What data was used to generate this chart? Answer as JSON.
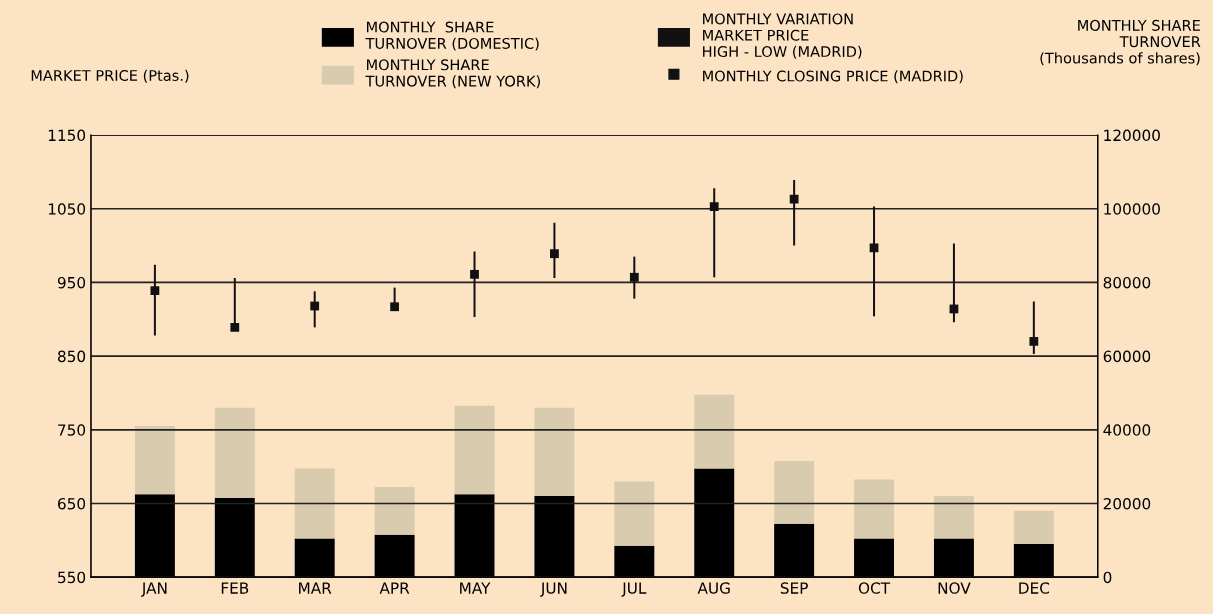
{
  "chart_data": {
    "type": "bar",
    "ylabel": "MARKET PRICE (Ptas.)",
    "y2label": "MONTHLY SHARE\nTURNOVER\n(Thousands of shares)",
    "categories": [
      "JAN",
      "FEB",
      "MAR",
      "APR",
      "MAY",
      "JUN",
      "JUL",
      "AUG",
      "SEP",
      "OCT",
      "NOV",
      "DEC"
    ],
    "stacked": true,
    "series": [
      {
        "name": "MONTHLY  SHARE\nTURNOVER (DOMESTIC)",
        "axis": "y2",
        "color": "#000000",
        "values": [
          22500,
          21500,
          10500,
          11500,
          22500,
          22000,
          8500,
          29500,
          14500,
          10500,
          10500,
          9000
        ]
      },
      {
        "name": "MONTHLY SHARE\nTURNOVER (NEW YORK)",
        "axis": "y2",
        "color": "#d9cbad",
        "values": [
          18500,
          24500,
          19000,
          13000,
          24000,
          24000,
          17500,
          20000,
          17000,
          16000,
          11500,
          9000
        ]
      },
      {
        "name": "MONTHLY VARIATION\nMARKET PRICE\nHIGH - LOW (MADRID)",
        "color": "#111111",
        "base": [
          878,
          889,
          889,
          915,
          903,
          956,
          928,
          957,
          1000,
          904,
          896,
          853
        ],
        "values": [
          96,
          67,
          49,
          28,
          89,
          75,
          57,
          121,
          89,
          149,
          107,
          71
        ]
      },
      {
        "name": "MONTHLY CLOSING PRICE (MADRID)",
        "type": "scatter",
        "marker": "square",
        "color": "#111111",
        "values": [
          939,
          889,
          918,
          917,
          961,
          989,
          957,
          1053,
          1063,
          997,
          914,
          870
        ]
      }
    ],
    "ylim": [
      550,
      1150
    ],
    "yticks": [
      550,
      650,
      750,
      850,
      950,
      1050,
      1150
    ],
    "y2lim": [
      0,
      120000
    ],
    "y2ticks": [
      0,
      20000,
      40000,
      60000,
      80000,
      100000,
      120000
    ],
    "grid": "y",
    "legend": "top"
  }
}
